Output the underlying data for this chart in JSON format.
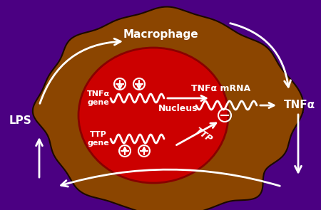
{
  "background_color": "#4B0082",
  "macrophage_color": "#8B4500",
  "macrophage_edge_color": "#1a0000",
  "nucleus_color": "#CC0000",
  "arrow_color": "white",
  "text_color": "white",
  "labels": {
    "macrophage": "Macrophage",
    "nucleus": "Nucleus",
    "tnfa_gene": "TNFα\ngene",
    "ttp_gene": "TTP\ngene",
    "tnfa_mrna": "TNFα mRNA",
    "tnfa": "TNFα",
    "lps": "LPS",
    "ttp": "TTP"
  },
  "fig_w": 4.5,
  "fig_h": 2.95,
  "dpi": 100
}
